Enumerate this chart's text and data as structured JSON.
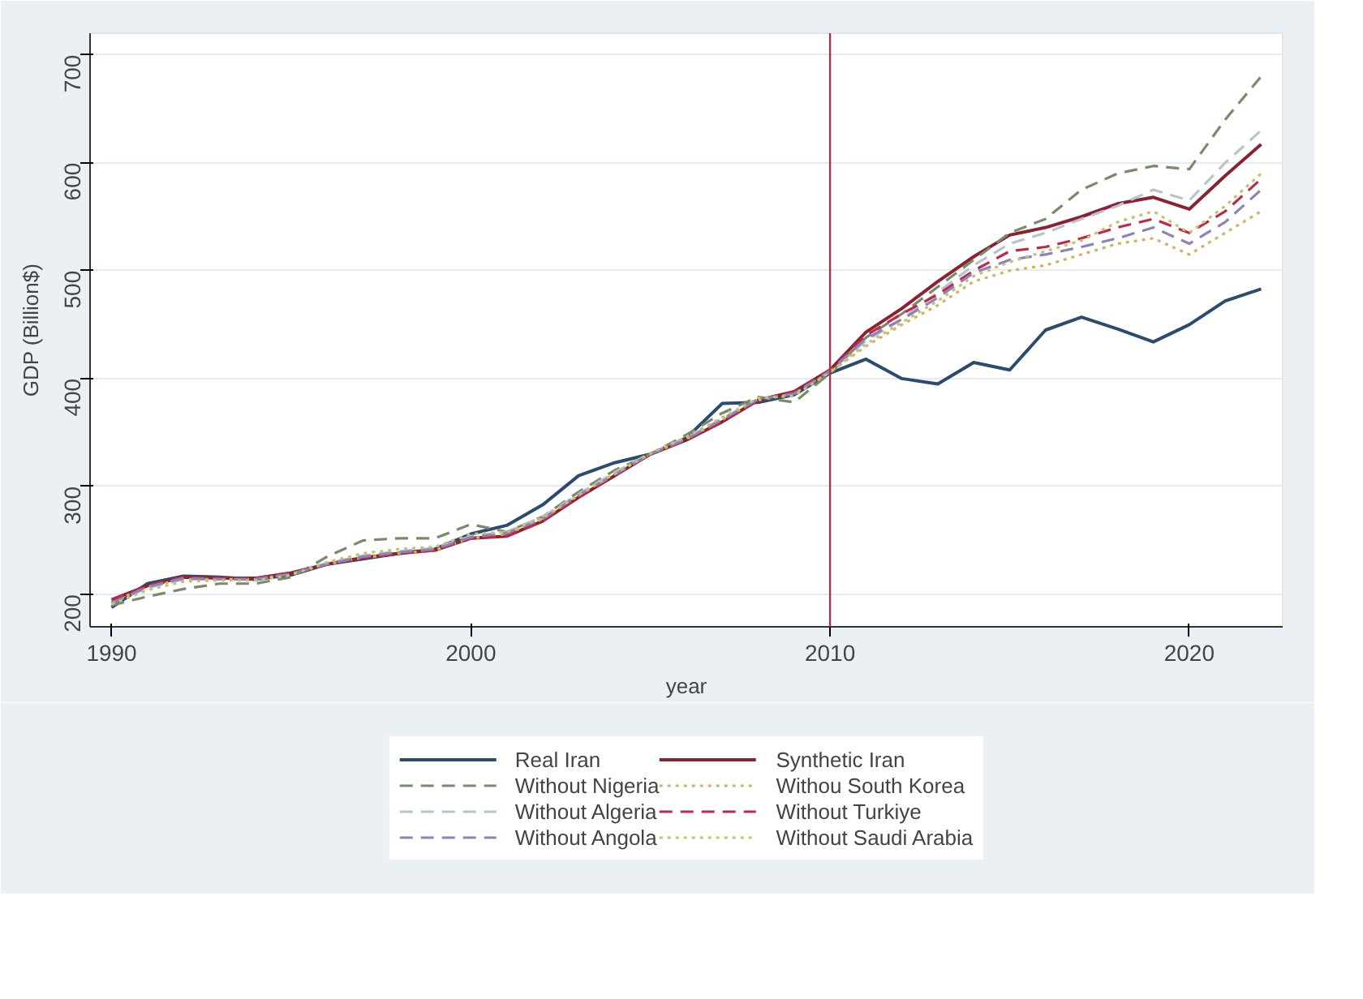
{
  "chart_data": {
    "type": "line",
    "xlabel": "year",
    "ylabel": "GDP (Billion$)",
    "x": [
      1990,
      1991,
      1992,
      1993,
      1994,
      1995,
      1996,
      1997,
      1998,
      1999,
      2000,
      2001,
      2002,
      2003,
      2004,
      2005,
      2006,
      2007,
      2008,
      2009,
      2010,
      2011,
      2012,
      2013,
      2014,
      2015,
      2016,
      2017,
      2018,
      2019,
      2020,
      2021,
      2022
    ],
    "xlim": [
      1989.4,
      2022.6
    ],
    "xticks": [
      1990,
      2000,
      2010,
      2020
    ],
    "ylim": [
      170,
      720
    ],
    "yticks": [
      200,
      300,
      400,
      500,
      600,
      700
    ],
    "grid": "y",
    "legend": "bottom",
    "marker": "none",
    "ref_lines": [
      {
        "axis": "x",
        "value": 2010,
        "color": "#a8334a"
      }
    ],
    "series": [
      {
        "name": "Real Iran",
        "color": "#2b4c6f",
        "line_style": "solid",
        "values": [
          188,
          210,
          217,
          216,
          214,
          218,
          228,
          233,
          238,
          242,
          256,
          264,
          283,
          310,
          322,
          330,
          345,
          377,
          378,
          385,
          405,
          418,
          400,
          395,
          415,
          408,
          445,
          457,
          446,
          434,
          450,
          472,
          483
        ]
      },
      {
        "name": "Synthetic Iran",
        "color": "#8b2232",
        "line_style": "solid",
        "values": [
          195,
          208,
          216,
          215,
          215,
          220,
          228,
          234,
          238,
          241,
          252,
          254,
          268,
          290,
          310,
          330,
          343,
          360,
          380,
          388,
          408,
          443,
          465,
          490,
          513,
          533,
          540,
          550,
          562,
          568,
          557,
          588,
          617
        ]
      },
      {
        "name": "Without Nigeria",
        "color": "#7a8a6a",
        "line_style": "dashed",
        "values": [
          190,
          198,
          205,
          210,
          210,
          216,
          235,
          250,
          252,
          252,
          265,
          258,
          272,
          295,
          315,
          330,
          348,
          368,
          383,
          378,
          405,
          438,
          460,
          485,
          510,
          535,
          548,
          575,
          590,
          597,
          594,
          640,
          680
        ]
      },
      {
        "name": "Withou South Korea",
        "color": "#d4b068",
        "line_style": "dotted",
        "values": [
          193,
          207,
          214,
          214,
          214,
          219,
          228,
          234,
          238,
          241,
          252,
          256,
          270,
          292,
          312,
          330,
          344,
          362,
          380,
          386,
          406,
          430,
          450,
          468,
          490,
          500,
          505,
          515,
          525,
          530,
          515,
          535,
          555
        ]
      },
      {
        "name": "Without Algeria",
        "color": "#b8c4cc",
        "line_style": "dashed",
        "values": [
          192,
          206,
          214,
          214,
          214,
          219,
          229,
          236,
          240,
          243,
          254,
          258,
          272,
          293,
          313,
          331,
          345,
          363,
          381,
          386,
          407,
          435,
          455,
          480,
          505,
          525,
          535,
          548,
          560,
          575,
          565,
          600,
          630
        ]
      },
      {
        "name": "Without Turkiye",
        "color": "#c0284a",
        "line_style": "dashed",
        "values": [
          195,
          208,
          216,
          215,
          215,
          220,
          228,
          234,
          238,
          241,
          252,
          254,
          268,
          290,
          310,
          330,
          343,
          360,
          380,
          388,
          408,
          440,
          460,
          478,
          500,
          518,
          522,
          530,
          540,
          548,
          535,
          555,
          585
        ]
      },
      {
        "name": "Without Angola",
        "color": "#8a84b8",
        "line_style": "dashed",
        "values": [
          192,
          207,
          215,
          214,
          214,
          219,
          228,
          235,
          239,
          242,
          253,
          257,
          270,
          292,
          311,
          330,
          344,
          362,
          381,
          386,
          407,
          437,
          455,
          475,
          498,
          510,
          515,
          522,
          530,
          540,
          525,
          545,
          575
        ]
      },
      {
        "name": "Without Saudi Arabia",
        "color": "#c8c070",
        "line_style": "dotted",
        "values": [
          191,
          204,
          212,
          213,
          213,
          218,
          230,
          238,
          242,
          244,
          256,
          258,
          271,
          292,
          312,
          331,
          346,
          364,
          382,
          384,
          406,
          432,
          452,
          472,
          495,
          508,
          518,
          528,
          545,
          555,
          535,
          560,
          590
        ]
      }
    ]
  }
}
